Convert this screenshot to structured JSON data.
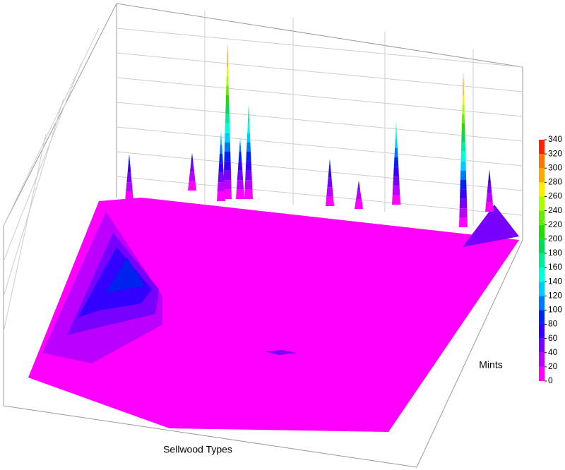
{
  "chart_data": {
    "type": "surface3d",
    "x_label": "Sellwood Types",
    "y_label": "Mints",
    "values": [
      330,
      330,
      200,
      175,
      150,
      130,
      100,
      100,
      90,
      80,
      60
    ],
    "colorbar": {
      "lim": [
        0,
        340
      ],
      "ticks": [
        0,
        20,
        40,
        60,
        80,
        100,
        120,
        140,
        160,
        180,
        200,
        220,
        240,
        260,
        280,
        300,
        320,
        340
      ],
      "colors": [
        "#ff00ff",
        "#bb00ff",
        "#7700ff",
        "#3300ff",
        "#0022ee",
        "#0077ff",
        "#00ccff",
        "#00ffdd",
        "#00ee99",
        "#00dd55",
        "#22dd00",
        "#66ee00",
        "#aaff00",
        "#ffee00",
        "#ffaa00",
        "#ff7700",
        "#ff2200"
      ]
    }
  }
}
